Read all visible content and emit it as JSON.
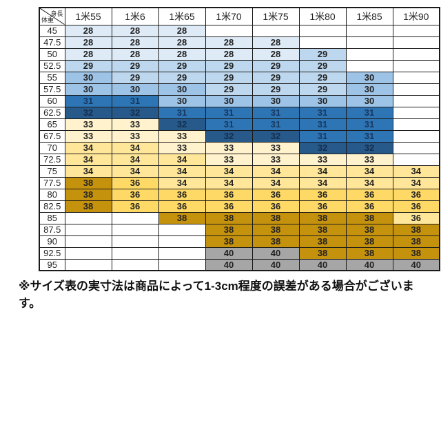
{
  "chart_data": {
    "type": "table",
    "corner": {
      "top_right_label": "身長",
      "bottom_left_label": "体重"
    },
    "columns": [
      "1米55",
      "1米6",
      "1米65",
      "1米70",
      "1米75",
      "1米80",
      "1米85",
      "1米90"
    ],
    "rows": [
      "45",
      "47.5",
      "50",
      "52.5",
      "55",
      "57.5",
      "60",
      "62.5",
      "65",
      "67.5",
      "70",
      "72.5",
      "75",
      "77.5",
      "80",
      "82.5",
      "85",
      "87.5",
      "90",
      "92.5",
      "95"
    ],
    "values": [
      [
        28,
        28,
        28,
        null,
        null,
        null,
        null,
        null
      ],
      [
        28,
        28,
        28,
        28,
        28,
        null,
        null,
        null
      ],
      [
        28,
        28,
        28,
        28,
        28,
        29,
        null,
        null
      ],
      [
        29,
        29,
        29,
        29,
        29,
        29,
        null,
        null
      ],
      [
        30,
        29,
        29,
        29,
        29,
        29,
        30,
        null
      ],
      [
        30,
        30,
        30,
        29,
        29,
        29,
        30,
        null
      ],
      [
        31,
        31,
        30,
        30,
        30,
        30,
        30,
        null
      ],
      [
        32,
        32,
        31,
        31,
        31,
        31,
        31,
        null
      ],
      [
        33,
        33,
        32,
        31,
        31,
        31,
        31,
        null
      ],
      [
        33,
        33,
        33,
        32,
        32,
        31,
        31,
        null
      ],
      [
        34,
        34,
        33,
        33,
        33,
        32,
        32,
        null
      ],
      [
        34,
        34,
        34,
        33,
        33,
        33,
        33,
        null
      ],
      [
        34,
        34,
        34,
        34,
        34,
        34,
        34,
        34
      ],
      [
        38,
        36,
        34,
        34,
        34,
        34,
        34,
        34
      ],
      [
        38,
        36,
        36,
        36,
        36,
        36,
        36,
        36
      ],
      [
        38,
        36,
        36,
        36,
        36,
        36,
        36,
        36
      ],
      [
        null,
        null,
        38,
        38,
        38,
        38,
        38,
        36
      ],
      [
        null,
        null,
        null,
        38,
        38,
        38,
        38,
        38
      ],
      [
        null,
        null,
        null,
        38,
        38,
        38,
        38,
        38
      ],
      [
        null,
        null,
        null,
        40,
        40,
        38,
        38,
        38
      ],
      [
        null,
        null,
        null,
        40,
        40,
        40,
        40,
        40
      ]
    ],
    "value_colors": {
      "28": "#DEEBF7",
      "29": "#BDD7EE",
      "30": "#9DC3E6",
      "31": "#2E75B6",
      "32": "#27598A",
      "33": "#FFF2CC",
      "34": "#FFE699",
      "36": "#FFD966",
      "38": "#C5920E",
      "40": "#A6A6A6"
    },
    "value_text_colors": {
      "31": "#17375E",
      "32": "#142E4D"
    },
    "cell_color_overrides": [
      {
        "row_index": 16,
        "col_index": 7,
        "color": "#FFE699"
      }
    ]
  },
  "footnote": "※サイズ表の実寸法は商品によって1-3cm程度の誤差がある場合がございます。"
}
